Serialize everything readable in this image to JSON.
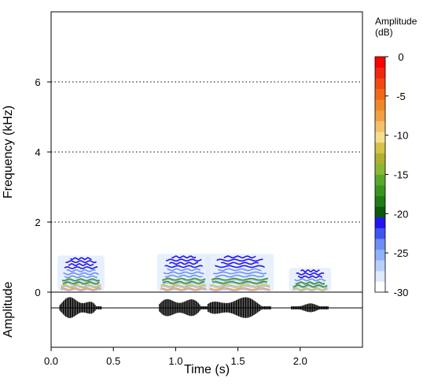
{
  "chart_data": {
    "type": "heatmap",
    "subtype": "spectrogram-with-oscillogram",
    "title": "",
    "xlabel": "Time (s)",
    "ylabel": "Frequency (kHz)",
    "ylabel_oscillogram": "Amplitude",
    "xlim": [
      0,
      2.5
    ],
    "ylim": [
      0,
      8
    ],
    "x_ticks": [
      {
        "value": 0.0,
        "label": "0.0"
      },
      {
        "value": 0.5,
        "label": "0.5"
      },
      {
        "value": 1.0,
        "label": "1.0"
      },
      {
        "value": 1.5,
        "label": "1.5"
      },
      {
        "value": 2.0,
        "label": "2.0"
      }
    ],
    "y_ticks": [
      {
        "value": 0,
        "label": "0"
      },
      {
        "value": 2,
        "label": "2"
      },
      {
        "value": 4,
        "label": "4"
      },
      {
        "value": 6,
        "label": "6"
      }
    ],
    "grid": "horizontal dotted at 2, 4, 6 kHz",
    "legend": {
      "title": "Amplitude\n(dB)",
      "title_lines": [
        "Amplitude",
        "(dB)"
      ],
      "placement": "right",
      "range": [
        -30,
        0
      ],
      "ticks": [
        {
          "value": 0,
          "label": "0"
        },
        {
          "value": -5,
          "label": "-5"
        },
        {
          "value": -10,
          "label": "-10"
        },
        {
          "value": -15,
          "label": "-15"
        },
        {
          "value": -20,
          "label": "-20"
        },
        {
          "value": -25,
          "label": "-25"
        },
        {
          "value": -30,
          "label": "-30"
        }
      ],
      "colors": [
        "#ffffff",
        "#deeafe",
        "#b8cffd",
        "#8fb0fa",
        "#6d8ff5",
        "#3f55f0",
        "#2414f0",
        "#0a5a0a",
        "#207a16",
        "#3a9420",
        "#5aa82a",
        "#8ab830",
        "#b0b030",
        "#d4c24a",
        "#f4dd8c",
        "#f0c06a",
        "#f0a040",
        "#f08828",
        "#f06a1a",
        "#f04a12",
        "#f02810",
        "#ff0000"
      ]
    },
    "segments": [
      {
        "start": 0.07,
        "end": 0.41,
        "f_max": 1.0
      },
      {
        "start": 0.87,
        "end": 1.26,
        "f_max": 1.05
      },
      {
        "start": 1.26,
        "end": 1.77,
        "f_max": 1.05
      },
      {
        "start": 1.93,
        "end": 2.23,
        "f_max": 0.65
      }
    ]
  }
}
